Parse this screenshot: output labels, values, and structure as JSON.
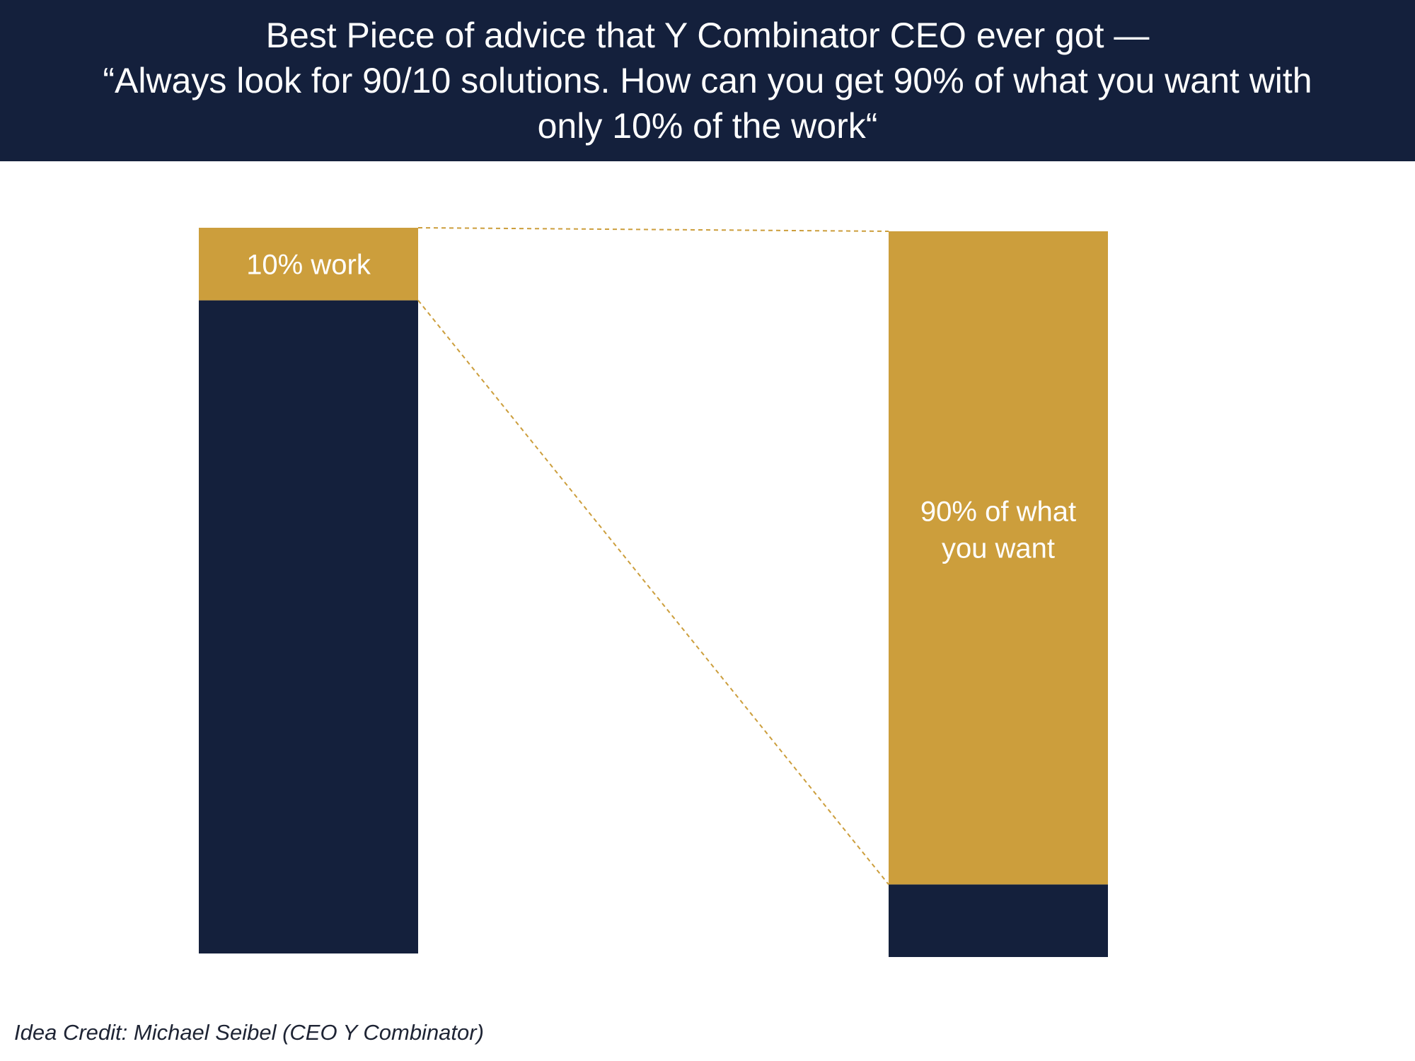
{
  "header": {
    "title_line_1": "Best Piece of advice that Y Combinator CEO ever got —",
    "title_line_2": "“Always look for 90/10 solutions. How can you get 90% of what you want with",
    "title_line_3": "only 10% of the work“"
  },
  "footer": {
    "credit": "Idea Credit: Michael Seibel (CEO Y Combinator)"
  },
  "colors": {
    "navy": "#14203c",
    "gold": "#cc9e3c",
    "label_text": "#ffffff",
    "connector": "#cc9e3c"
  },
  "chart_data": {
    "type": "bar",
    "stacked": true,
    "categories": [
      "",
      ""
    ],
    "ylim": [
      0,
      100
    ],
    "series": [
      {
        "name": "",
        "values": [
          90,
          10
        ],
        "color": "#14203c"
      },
      {
        "name": "",
        "values": [
          10,
          90
        ],
        "color": "#cc9e3c"
      }
    ],
    "annotations": [
      {
        "bar": 0,
        "segment": 1,
        "text": [
          "10% work"
        ]
      },
      {
        "bar": 1,
        "segment": 1,
        "text": [
          "90% of what",
          "you want"
        ]
      }
    ],
    "connectors": [
      {
        "from": "bar0-top",
        "to": "bar1-top",
        "style": "dashed"
      },
      {
        "from": "bar0-split",
        "to": "bar1-split",
        "style": "dashed"
      }
    ],
    "grid": false,
    "legend": "none",
    "axes_visible": false
  }
}
